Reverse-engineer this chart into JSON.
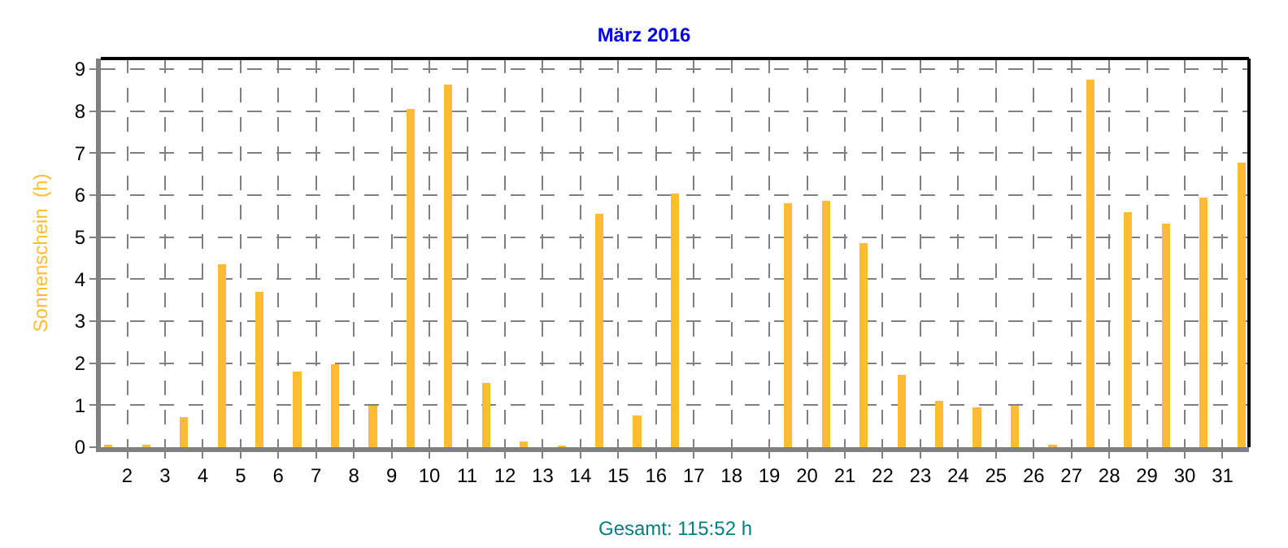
{
  "chart_data": {
    "type": "bar",
    "title": "März 2016",
    "ylabel": "Sonnenschein  (h)",
    "x": [
      1.5,
      2.5,
      3.5,
      4.5,
      5.5,
      6.5,
      7.5,
      8.5,
      9.5,
      10.5,
      11.5,
      12.5,
      13.5,
      14.5,
      15.5,
      16.5,
      17.5,
      18.5,
      19.5,
      20.5,
      21.5,
      22.5,
      23.5,
      24.5,
      25.5,
      26.5,
      27.5,
      28.5,
      29.5,
      30.5,
      31.5
    ],
    "values": [
      0.05,
      0.05,
      0.72,
      4.36,
      3.7,
      1.8,
      1.97,
      0.98,
      8.05,
      8.63,
      1.53,
      0.14,
      0.04,
      5.56,
      0.75,
      6.03,
      null,
      null,
      5.8,
      5.87,
      4.86,
      1.72,
      1.1,
      0.94,
      0.98,
      0.05,
      8.75,
      5.6,
      5.33,
      5.95,
      6.77
    ],
    "color": "#ffbb33",
    "xlim": [
      1.3,
      31.7
    ],
    "xticks": [
      2,
      3,
      4,
      5,
      6,
      7,
      8,
      9,
      10,
      11,
      12,
      13,
      14,
      15,
      16,
      17,
      18,
      19,
      20,
      21,
      22,
      23,
      24,
      25,
      26,
      27,
      28,
      29,
      30,
      31
    ],
    "ylim": [
      0,
      9.25
    ],
    "yticks": [
      0,
      1,
      2,
      3,
      4,
      5,
      6,
      7,
      8,
      9
    ],
    "grid": true,
    "legend": false,
    "annotations": [
      "Gesamt: 115:52 h"
    ]
  }
}
